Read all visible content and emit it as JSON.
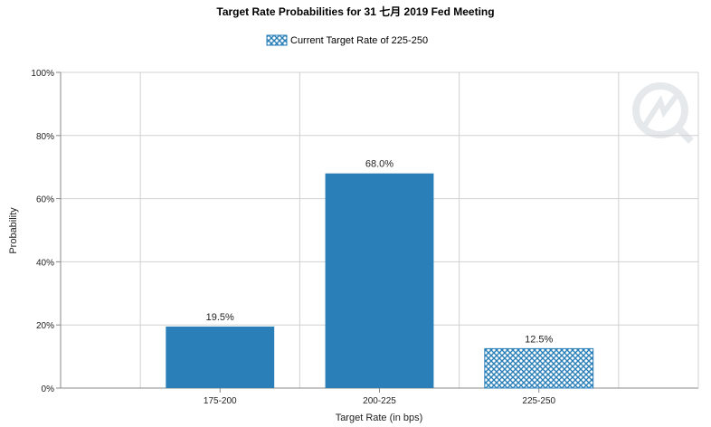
{
  "chart_data": {
    "type": "bar",
    "title": "Target Rate Probabilities for 31 七月 2019  Fed Meeting",
    "legend": {
      "label": "Current Target Rate of 225-250",
      "placement": "top-center"
    },
    "xlabel": "Target Rate (in bps)",
    "ylabel": "Probability",
    "categories": [
      "175-200",
      "200-225",
      "225-250"
    ],
    "values": [
      19.5,
      68.0,
      12.5
    ],
    "value_labels": [
      "19.5%",
      "68.0%",
      "12.5%"
    ],
    "highlight_category": "225-250",
    "ylim": [
      0,
      100
    ],
    "yticks": [
      "0%",
      "20%",
      "40%",
      "60%",
      "80%",
      "100%"
    ],
    "grid": true,
    "colors": {
      "bar": "#2a7fb8",
      "hatch": "#2a7fb8",
      "grid": "#d0d0d0",
      "axis": "#888888"
    }
  }
}
